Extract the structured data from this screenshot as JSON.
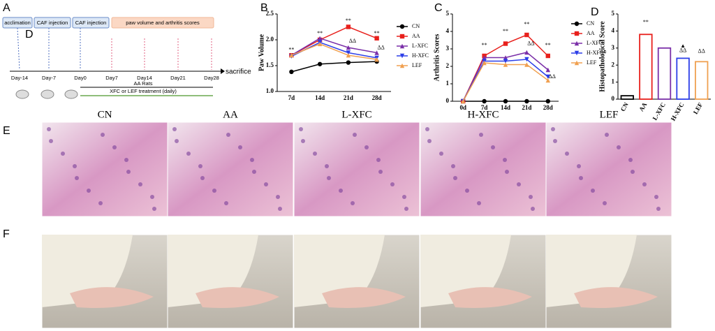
{
  "panel_labels": {
    "a": "A",
    "a_extra": "D",
    "b": "B",
    "c": "C",
    "d": "D",
    "e": "E",
    "f": "F"
  },
  "timeline": {
    "boxes": [
      "acclimation",
      "CAF injection",
      "CAF injection",
      "paw volume and arthritis scores"
    ],
    "days": [
      "Day-14",
      "Day-7",
      "Day0",
      "Day7",
      "Day14",
      "Day21",
      "Day28"
    ],
    "end": "sacrifice",
    "group": "AA Rats",
    "treatment": "XFC or LEF treatment  (daily)"
  },
  "histology": {
    "captions": [
      "CN",
      "AA",
      "L-XFC",
      "H-XFC",
      "LEF"
    ]
  },
  "chart_data": [
    {
      "type": "line",
      "ylabel": "Paw Volume",
      "categories": [
        "7d",
        "14d",
        "21d",
        "28d"
      ],
      "ylim": [
        1.0,
        2.5
      ],
      "yticks": [
        {
          "value": 1.0,
          "label": "1.0"
        },
        1.5,
        {
          "value": 2.0,
          "label": "2.0"
        },
        2.5
      ],
      "series": [
        {
          "name": "CN",
          "color": "#000000",
          "marker": "circle",
          "values": [
            1.38,
            1.53,
            1.56,
            1.58
          ]
        },
        {
          "name": "AA",
          "color": "#e8201c",
          "marker": "square",
          "values": [
            1.7,
            2.0,
            2.25,
            2.03
          ]
        },
        {
          "name": "L-XFC",
          "color": "#7a2fa8",
          "marker": "triangle-up",
          "values": [
            1.7,
            2.03,
            1.85,
            1.75
          ]
        },
        {
          "name": "H-XFC",
          "color": "#2c3ee8",
          "marker": "triangle-down",
          "values": [
            1.68,
            1.95,
            1.75,
            1.65
          ]
        },
        {
          "name": "LEF",
          "color": "#f0a050",
          "marker": "triangle-up",
          "values": [
            1.7,
            1.92,
            1.7,
            1.62
          ]
        }
      ],
      "annotations": [
        {
          "text": "**",
          "x": "7d",
          "y": 1.8
        },
        {
          "text": "**",
          "x": "14d",
          "y": 2.12
        },
        {
          "text": "**",
          "x": "21d",
          "y": 2.36
        },
        {
          "text": "**",
          "x": "28d",
          "y": 2.12
        },
        {
          "text": "ΔΔ",
          "x": "21d",
          "y": 1.97
        },
        {
          "text": "ΔΔ",
          "x": "28d",
          "y": 1.84
        }
      ]
    },
    {
      "type": "line",
      "ylabel": "Arthritis Scores",
      "categories": [
        "0d",
        "7d",
        "14d",
        "21d",
        "28d"
      ],
      "ylim": [
        0,
        5
      ],
      "yticks": [
        0,
        1,
        2,
        3,
        4,
        5
      ],
      "series": [
        {
          "name": "CN",
          "color": "#000000",
          "marker": "circle",
          "values": [
            0,
            0,
            0,
            0,
            0
          ]
        },
        {
          "name": "AA",
          "color": "#e8201c",
          "marker": "square",
          "values": [
            0,
            2.6,
            3.3,
            3.8,
            2.6
          ]
        },
        {
          "name": "L-XFC",
          "color": "#7a2fa8",
          "marker": "triangle-up",
          "values": [
            0,
            2.5,
            2.5,
            2.8,
            1.8
          ]
        },
        {
          "name": "H-XFC",
          "color": "#2c3ee8",
          "marker": "triangle-down",
          "values": [
            0,
            2.3,
            2.3,
            2.4,
            1.4
          ]
        },
        {
          "name": "LEF",
          "color": "#f0a050",
          "marker": "triangle-up",
          "values": [
            0,
            2.2,
            2.1,
            2.1,
            1.2
          ]
        }
      ],
      "annotations": [
        {
          "text": "**",
          "x": "7d",
          "y": 3.2
        },
        {
          "text": "**",
          "x": "14d",
          "y": 4.0
        },
        {
          "text": "**",
          "x": "21d",
          "y": 4.4
        },
        {
          "text": "**",
          "x": "28d",
          "y": 3.2
        },
        {
          "text": "ΔΔ",
          "x": "21d",
          "y": 3.3
        },
        {
          "text": "ΔΔ",
          "x": "28d",
          "y": 1.4
        }
      ]
    },
    {
      "type": "bar",
      "ylabel": "Histopathological Score",
      "categories": [
        "CN",
        "AA",
        "L-XFC",
        "H-XFC",
        "LEF"
      ],
      "values": [
        0.2,
        3.8,
        3.0,
        2.4,
        2.2
      ],
      "colors": [
        "#000000",
        "#e8201c",
        "#7a2fa8",
        "#2c3ee8",
        "#f0a050"
      ],
      "ylim": [
        0,
        5
      ],
      "yticks": [
        0,
        1,
        2,
        3,
        4,
        5
      ],
      "annotations": [
        {
          "text": "**",
          "x": "AA",
          "y": 4.5
        },
        {
          "text": "▲",
          "x": "H-XFC",
          "y": 3.1
        },
        {
          "text": "ΔΔ",
          "x": "H-XFC",
          "y": 2.85
        },
        {
          "text": "ΔΔ",
          "x": "LEF",
          "y": 2.8
        }
      ]
    }
  ]
}
